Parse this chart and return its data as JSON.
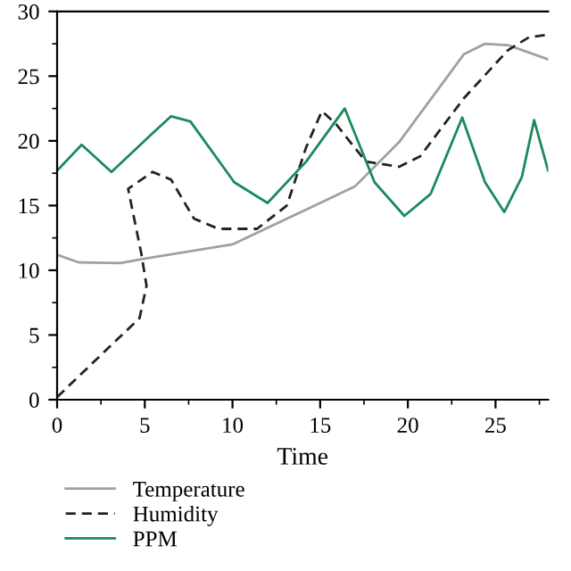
{
  "chart_data": {
    "type": "line",
    "xlabel": "Time",
    "xlim": [
      0,
      28
    ],
    "ylim": [
      0,
      30
    ],
    "xticks": [
      0,
      5,
      10,
      15,
      20,
      25
    ],
    "yticks": [
      0,
      5,
      10,
      15,
      20,
      25,
      30
    ],
    "legend": "bottom",
    "grid": false,
    "marker": "none",
    "series": [
      {
        "name": "Temperature",
        "color": "#a0a0a0",
        "line_style": "solid",
        "x": [
          0,
          1.25,
          3.6,
          5,
          10,
          15,
          17,
          19.5,
          23.2,
          24.4,
          25.7,
          28
        ],
        "values": [
          11.2,
          10.6,
          10.55,
          10.9,
          12.0,
          15.2,
          16.5,
          19.9,
          26.7,
          27.5,
          27.4,
          26.3
        ]
      },
      {
        "name": "Humidity",
        "color": "#222222",
        "line_style": "dashed",
        "x": [
          0,
          3,
          4.7,
          5.1,
          4.8,
          4.05,
          5.45,
          6.5,
          7.8,
          9.2,
          11.4,
          13.1,
          14.2,
          15.1,
          15.9,
          17.6,
          19.5,
          20.7,
          23.2,
          25.7,
          26.9,
          28
        ],
        "values": [
          0.2,
          4.1,
          6.3,
          8.8,
          11.3,
          16.3,
          17.6,
          17.0,
          14.0,
          13.2,
          13.2,
          15.0,
          19.5,
          22.3,
          21.3,
          18.4,
          18.0,
          18.8,
          23.3,
          27.0,
          28.0,
          28.2
        ]
      },
      {
        "name": "PPM",
        "color": "#1a8a5a",
        "line_style": "solid",
        "x": [
          0,
          1.4,
          3.1,
          5.45,
          6.5,
          7.6,
          10.1,
          12,
          14.2,
          16.4,
          18.1,
          19.8,
          21.3,
          23.1,
          24.4,
          25.5,
          26.5,
          27.2,
          28
        ],
        "values": [
          17.7,
          19.7,
          17.6,
          20.6,
          21.9,
          21.5,
          16.8,
          15.2,
          18.4,
          22.5,
          16.8,
          14.2,
          15.9,
          21.8,
          16.8,
          14.5,
          17.2,
          21.6,
          17.7
        ]
      }
    ]
  }
}
